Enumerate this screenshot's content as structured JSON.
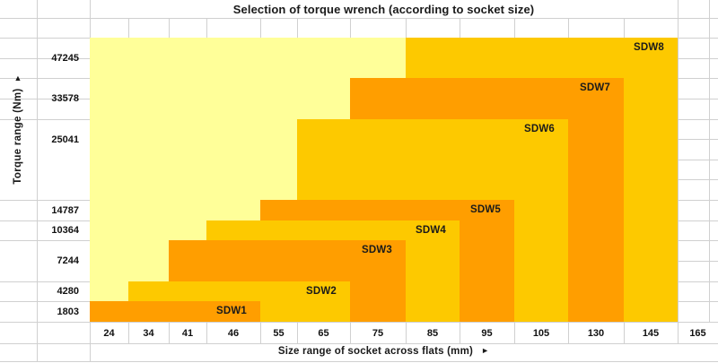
{
  "title": "Selection of torque wrench (according to socket size)",
  "colors": {
    "pale_yellow": "#FFFF99",
    "gold": "#FDC900",
    "orange": "#FF9E00",
    "gridline": "#D0D0D0",
    "text": "#1A1A1A"
  },
  "axes": {
    "y_title": "Torque range  (Nm)",
    "y_arrow": "▲",
    "x_title": "Size range of socket across flats  (mm)",
    "x_arrow": "►"
  },
  "chart_data": {
    "type": "bar",
    "title": "Selection of torque wrench (according to socket size)",
    "xlabel": "Size range of socket across flats (mm)",
    "ylabel": "Torque range (Nm)",
    "x_ticks": [
      "24",
      "34",
      "41",
      "46",
      "55",
      "65",
      "75",
      "85",
      "95",
      "105",
      "130",
      "145",
      "165"
    ],
    "y_ticks": [
      "1803",
      "4280",
      "7244",
      "10364",
      "14787",
      "25041",
      "33578",
      "47245"
    ],
    "legend": "none",
    "grid": "on",
    "background_region": {
      "color_key": "pale_yellow",
      "socket_min": 24,
      "socket_max": 145,
      "torque_max": 47245
    },
    "series": [
      {
        "name": "SDW1",
        "socket_min": 24,
        "socket_max": 46,
        "torque_max": 1803,
        "color_key": "orange"
      },
      {
        "name": "SDW2",
        "socket_min": 34,
        "socket_max": 65,
        "torque_max": 4280,
        "color_key": "gold"
      },
      {
        "name": "SDW3",
        "socket_min": 41,
        "socket_max": 75,
        "torque_max": 7244,
        "color_key": "orange"
      },
      {
        "name": "SDW4",
        "socket_min": 46,
        "socket_max": 85,
        "torque_max": 10364,
        "color_key": "gold"
      },
      {
        "name": "SDW5",
        "socket_min": 55,
        "socket_max": 95,
        "torque_max": 14787,
        "color_key": "orange"
      },
      {
        "name": "SDW6",
        "socket_min": 65,
        "socket_max": 105,
        "torque_max": 25041,
        "color_key": "gold"
      },
      {
        "name": "SDW7",
        "socket_min": 75,
        "socket_max": 130,
        "torque_max": 33578,
        "color_key": "orange"
      },
      {
        "name": "SDW8",
        "socket_min": 85,
        "socket_max": 145,
        "torque_max": 47245,
        "color_key": "gold"
      }
    ]
  }
}
